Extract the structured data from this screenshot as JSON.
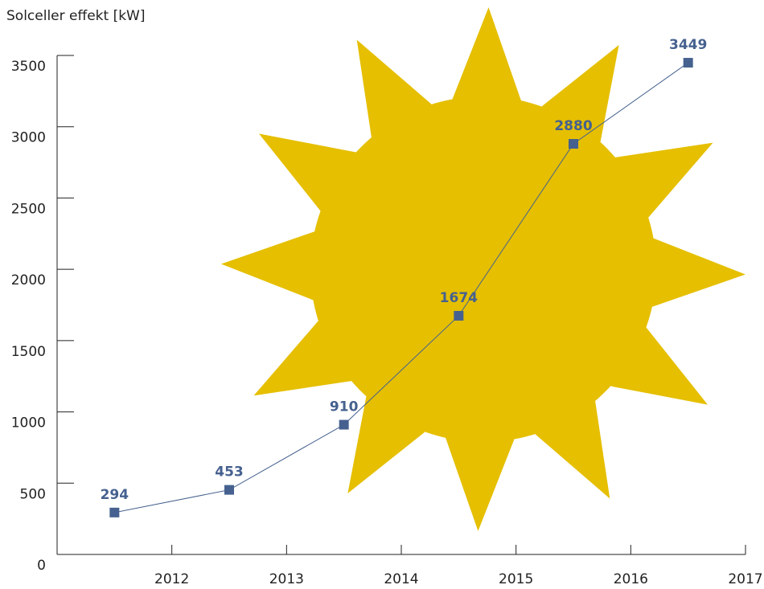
{
  "chart_data": {
    "type": "line",
    "y_label": "Solceller effekt [kW]",
    "x": [
      2011.5,
      2012.5,
      2013.5,
      2014.5,
      2015.5,
      2016.5
    ],
    "values": [
      294,
      453,
      910,
      1674,
      2880,
      3449
    ],
    "color": "#46618f",
    "xlim": [
      2011,
      2017
    ],
    "xticks": [
      2012,
      2013,
      2014,
      2015,
      2016,
      2017
    ],
    "ylim": [
      0,
      3500
    ],
    "yticks": [
      0,
      500,
      1000,
      1500,
      2000,
      2500,
      3000,
      3500
    ]
  }
}
